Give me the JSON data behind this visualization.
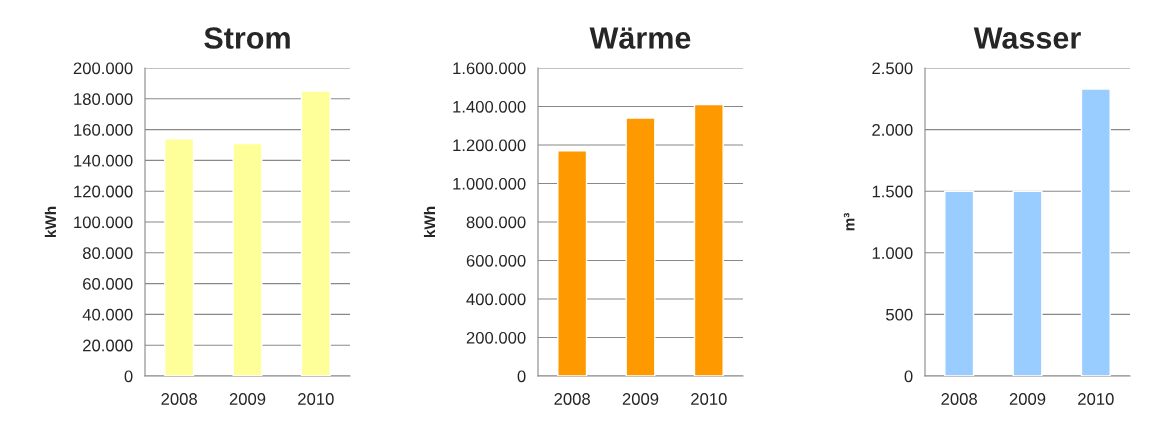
{
  "chart_data": [
    {
      "type": "bar",
      "title": "Strom",
      "ylabel": "kWh",
      "categories": [
        "2008",
        "2009",
        "2010"
      ],
      "values": [
        154000,
        151000,
        185000
      ],
      "color": "#ffff99",
      "ylim": [
        0,
        200000
      ],
      "yticks": [
        {
          "value": 0,
          "label": "0"
        },
        {
          "value": 20000,
          "label": "20.000"
        },
        {
          "value": 40000,
          "label": "40.000"
        },
        {
          "value": 60000,
          "label": "60.000"
        },
        {
          "value": 80000,
          "label": "80.000"
        },
        {
          "value": 100000,
          "label": "100.000"
        },
        {
          "value": 120000,
          "label": "120.000"
        },
        {
          "value": 140000,
          "label": "140.000"
        },
        {
          "value": 160000,
          "label": "160.000"
        },
        {
          "value": 180000,
          "label": "180.000"
        },
        {
          "value": 200000,
          "label": "200.000"
        }
      ],
      "grid": "y"
    },
    {
      "type": "bar",
      "title": "Wärme",
      "ylabel": "kWh",
      "categories": [
        "2008",
        "2009",
        "2010"
      ],
      "values": [
        1170000,
        1340000,
        1410000
      ],
      "color": "#ff9900",
      "ylim": [
        0,
        1600000
      ],
      "yticks": [
        {
          "value": 0,
          "label": "0"
        },
        {
          "value": 200000,
          "label": "200.000"
        },
        {
          "value": 400000,
          "label": "400.000"
        },
        {
          "value": 600000,
          "label": "600.000"
        },
        {
          "value": 800000,
          "label": "800.000"
        },
        {
          "value": 1000000,
          "label": "1.000.000"
        },
        {
          "value": 1200000,
          "label": "1.200.000"
        },
        {
          "value": 1400000,
          "label": "1.400.000"
        },
        {
          "value": 1600000,
          "label": "1.600.000"
        }
      ],
      "grid": "y"
    },
    {
      "type": "bar",
      "title": "Wasser",
      "ylabel": "m³",
      "categories": [
        "2008",
        "2009",
        "2010"
      ],
      "values": [
        1500,
        1500,
        2330
      ],
      "color": "#99ccff",
      "ylim": [
        0,
        2500
      ],
      "yticks": [
        {
          "value": 0,
          "label": "0"
        },
        {
          "value": 500,
          "label": "500"
        },
        {
          "value": 1000,
          "label": "1.000"
        },
        {
          "value": 1500,
          "label": "1.500"
        },
        {
          "value": 2000,
          "label": "2.000"
        },
        {
          "value": 2500,
          "label": "2.500"
        }
      ],
      "grid": "y"
    }
  ]
}
